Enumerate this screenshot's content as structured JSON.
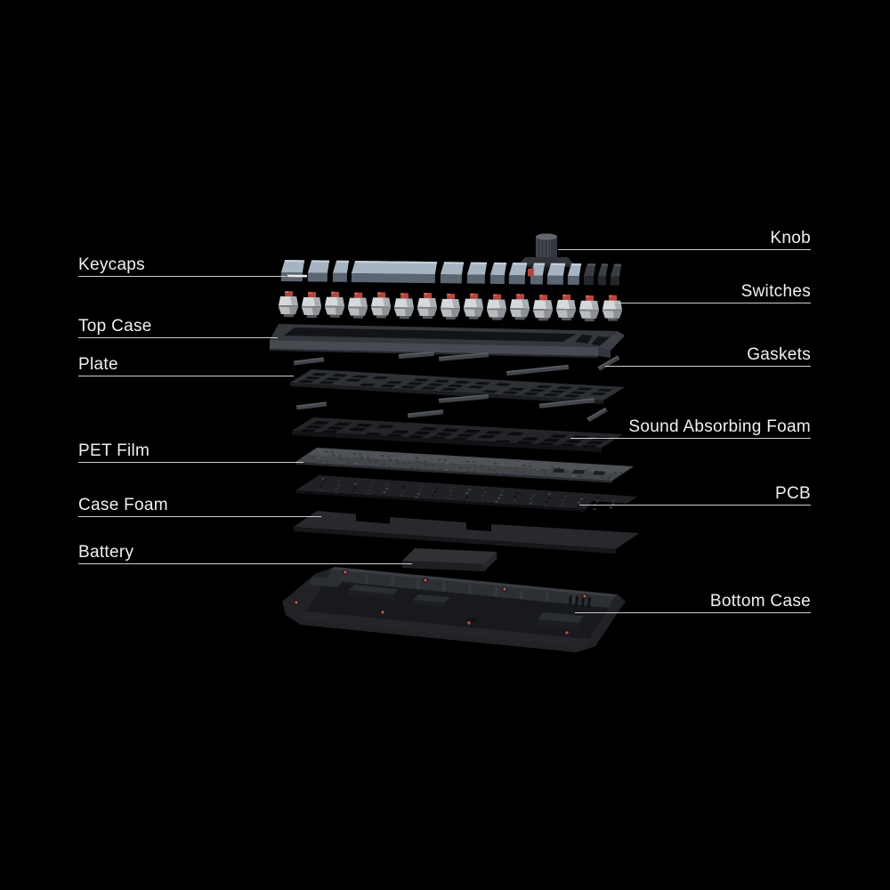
{
  "page": {
    "description": "Exploded view diagram of a mechanical keyboard showing its internal layers",
    "background": "#000000"
  },
  "labels": {
    "left": [
      {
        "id": "keycaps",
        "text": "Keycaps"
      },
      {
        "id": "top-case",
        "text": "Top Case"
      },
      {
        "id": "plate",
        "text": "Plate"
      },
      {
        "id": "pet-film",
        "text": "PET Film"
      },
      {
        "id": "case-foam",
        "text": "Case Foam"
      },
      {
        "id": "battery",
        "text": "Battery"
      }
    ],
    "right": [
      {
        "id": "knob",
        "text": "Knob"
      },
      {
        "id": "switches",
        "text": "Switches"
      },
      {
        "id": "gaskets",
        "text": "Gaskets"
      },
      {
        "id": "sound-absorbing-foam",
        "text": "Sound Absorbing Foam"
      },
      {
        "id": "pcb",
        "text": "PCB"
      },
      {
        "id": "bottom-case",
        "text": "Bottom Case"
      }
    ]
  },
  "colors": {
    "background": "#000000",
    "label_text": "#f0f0f0",
    "leader_line": "#cdcdcd",
    "keycap_top": "#a6b4c1",
    "keycap_front": "#5a6671",
    "keycap_dark_top": "#3a3e44",
    "keycap_dark_front": "#24272b",
    "switch_red": "#b5453c",
    "switch_body": "#d6d9db",
    "switch_lower": "#b9bdc0",
    "case_top": "#34373c",
    "case_front": "#474a50",
    "cutout": "#121417",
    "plate_top": "#2d3034",
    "foam_top": "#232528",
    "pet_top": "#4f5257",
    "pcb_top": "#1f2125",
    "case_foam_top": "#27292d",
    "battery_top": "#2f3135",
    "bottom_case": "#202226",
    "screw_red": "#ad4a3e",
    "gasket": "#42454b"
  }
}
